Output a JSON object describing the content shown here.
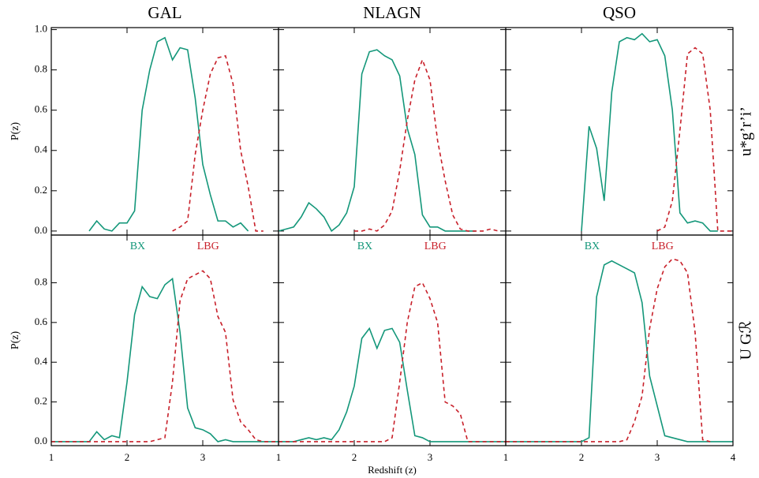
{
  "chart_data": [
    {
      "type": "line",
      "title": "GAL",
      "ylabel": "P(z)",
      "x": [
        1.0,
        1.1,
        1.2,
        1.3,
        1.4,
        1.5,
        1.6,
        1.7,
        1.8,
        1.9,
        2.0,
        2.1,
        2.2,
        2.3,
        2.4,
        2.5,
        2.6,
        2.7,
        2.8,
        2.9,
        3.0,
        3.1,
        3.2,
        3.3,
        3.4,
        3.5,
        3.6,
        3.7,
        3.8,
        3.9,
        4.0
      ],
      "xlim": [
        1,
        4
      ],
      "ylim": [
        -0.02,
        1.01
      ],
      "yticks": [
        {
          "value": 0,
          "label": "0.0"
        },
        0.2,
        0.4,
        0.6,
        0.8,
        {
          "value": 1,
          "label": "1.0"
        }
      ],
      "series": [
        {
          "color": "#14977a",
          "dash": false,
          "values": [
            null,
            null,
            null,
            null,
            null,
            0.0,
            0.05,
            0.01,
            0.0,
            0.04,
            0.04,
            0.1,
            0.6,
            0.8,
            0.94,
            0.96,
            0.85,
            0.91,
            0.9,
            0.66,
            0.33,
            0.18,
            0.05,
            0.05,
            0.02,
            0.04,
            0.0,
            null,
            null,
            null,
            null
          ]
        },
        {
          "color": "#c8202a",
          "dash": true,
          "values": [
            null,
            null,
            null,
            null,
            null,
            null,
            null,
            null,
            null,
            null,
            null,
            null,
            null,
            null,
            null,
            null,
            0.0,
            0.02,
            0.05,
            0.38,
            0.6,
            0.78,
            0.86,
            0.87,
            0.73,
            0.4,
            0.22,
            0.0,
            0.0,
            null,
            null
          ]
        }
      ]
    },
    {
      "type": "line",
      "title": "NLAGN",
      "x": [
        1.0,
        1.1,
        1.2,
        1.3,
        1.4,
        1.5,
        1.6,
        1.7,
        1.8,
        1.9,
        2.0,
        2.1,
        2.2,
        2.3,
        2.4,
        2.5,
        2.6,
        2.7,
        2.8,
        2.9,
        3.0,
        3.1,
        3.2,
        3.3,
        3.4,
        3.5,
        3.6,
        3.7,
        3.8,
        3.9,
        4.0
      ],
      "xlim": [
        1,
        4
      ],
      "ylim": [
        -0.02,
        1.01
      ],
      "series": [
        {
          "color": "#14977a",
          "dash": false,
          "values": [
            0.0,
            0.01,
            0.02,
            0.07,
            0.14,
            0.11,
            0.07,
            0.0,
            0.03,
            0.09,
            0.22,
            0.78,
            0.89,
            0.9,
            0.87,
            0.85,
            0.77,
            0.51,
            0.38,
            0.08,
            0.02,
            0.02,
            0.0,
            0.0,
            0.0,
            0.0,
            0.0,
            null,
            null,
            null,
            null
          ]
        },
        {
          "color": "#c8202a",
          "dash": true,
          "values": [
            null,
            null,
            null,
            null,
            null,
            null,
            null,
            null,
            null,
            null,
            0.0,
            0.0,
            0.01,
            0.0,
            0.03,
            0.1,
            0.3,
            0.55,
            0.75,
            0.85,
            0.75,
            0.45,
            0.25,
            0.08,
            0.01,
            0.0,
            0.0,
            0.0,
            0.01,
            0.0,
            null
          ]
        }
      ]
    },
    {
      "type": "line",
      "title": "QSO",
      "row_label": "u*g’r’i’",
      "x": [
        1.0,
        1.1,
        1.2,
        1.3,
        1.4,
        1.5,
        1.6,
        1.7,
        1.8,
        1.9,
        2.0,
        2.1,
        2.2,
        2.3,
        2.4,
        2.5,
        2.6,
        2.7,
        2.8,
        2.9,
        3.0,
        3.1,
        3.2,
        3.3,
        3.4,
        3.5,
        3.6,
        3.7,
        3.8,
        3.9,
        4.0
      ],
      "xlim": [
        1,
        4
      ],
      "ylim": [
        -0.02,
        1.01
      ],
      "series": [
        {
          "color": "#14977a",
          "dash": false,
          "values": [
            null,
            null,
            null,
            null,
            null,
            null,
            null,
            null,
            null,
            null,
            0.0,
            0.52,
            0.41,
            0.15,
            0.69,
            0.94,
            0.96,
            0.95,
            0.98,
            0.94,
            0.95,
            0.87,
            0.6,
            0.09,
            0.04,
            0.05,
            0.04,
            0.0,
            0.0,
            null,
            null
          ]
        },
        {
          "color": "#c8202a",
          "dash": true,
          "values": [
            null,
            null,
            null,
            null,
            null,
            null,
            null,
            null,
            null,
            null,
            null,
            null,
            null,
            null,
            null,
            null,
            null,
            null,
            null,
            null,
            0.0,
            0.02,
            0.15,
            0.5,
            0.88,
            0.91,
            0.88,
            0.6,
            0.0,
            0.0,
            0.0
          ]
        }
      ]
    },
    {
      "type": "line",
      "ylabel": "P(z)",
      "x": [
        1.0,
        1.1,
        1.2,
        1.3,
        1.4,
        1.5,
        1.6,
        1.7,
        1.8,
        1.9,
        2.0,
        2.1,
        2.2,
        2.3,
        2.4,
        2.5,
        2.6,
        2.7,
        2.8,
        2.9,
        3.0,
        3.1,
        3.2,
        3.3,
        3.4,
        3.5,
        3.6,
        3.7,
        3.8,
        3.9,
        4.0
      ],
      "xlim": [
        1,
        4
      ],
      "ylim": [
        -0.02,
        1.04
      ],
      "xticks": [
        1,
        2,
        3
      ],
      "yticks": [
        {
          "value": 0,
          "label": "0.0"
        },
        0.2,
        0.4,
        0.6,
        0.8
      ],
      "series": [
        {
          "name": "BX",
          "color": "#14977a",
          "dash": false,
          "values": [
            0.0,
            0.0,
            0.0,
            0.0,
            0.0,
            0.0,
            0.05,
            0.01,
            0.03,
            0.02,
            0.3,
            0.64,
            0.78,
            0.73,
            0.72,
            0.79,
            0.82,
            0.55,
            0.17,
            0.07,
            0.06,
            0.04,
            0.0,
            0.01,
            0.0,
            0.0,
            0.0,
            0.0,
            0.0,
            0.0,
            0.0
          ]
        },
        {
          "name": "LBG",
          "color": "#c8202a",
          "dash": true,
          "values": [
            0.0,
            0.0,
            0.0,
            0.0,
            0.0,
            0.0,
            0.0,
            0.0,
            0.0,
            0.0,
            0.0,
            0.0,
            0.0,
            0.0,
            0.01,
            0.02,
            0.3,
            0.71,
            0.82,
            0.84,
            0.86,
            0.82,
            0.63,
            0.55,
            0.21,
            0.1,
            0.06,
            0.01,
            0.0,
            0.0,
            0.0
          ]
        }
      ]
    },
    {
      "type": "line",
      "xlabel": "Redshift (z)",
      "x": [
        1.0,
        1.1,
        1.2,
        1.3,
        1.4,
        1.5,
        1.6,
        1.7,
        1.8,
        1.9,
        2.0,
        2.1,
        2.2,
        2.3,
        2.4,
        2.5,
        2.6,
        2.7,
        2.8,
        2.9,
        3.0,
        3.1,
        3.2,
        3.3,
        3.4,
        3.5,
        3.6,
        3.7,
        3.8,
        3.9,
        4.0
      ],
      "xlim": [
        1,
        4
      ],
      "ylim": [
        -0.02,
        1.04
      ],
      "xticks": [
        1,
        2,
        3
      ],
      "series": [
        {
          "name": "BX",
          "color": "#14977a",
          "dash": false,
          "values": [
            0.0,
            0.0,
            0.0,
            0.01,
            0.02,
            0.01,
            0.02,
            0.01,
            0.06,
            0.15,
            0.28,
            0.52,
            0.57,
            0.47,
            0.56,
            0.57,
            0.5,
            0.26,
            0.03,
            0.02,
            0.0,
            0.0,
            0.0,
            0.0,
            0.0,
            0.0,
            0.0,
            0.0,
            0.0,
            0.0,
            0.0
          ]
        },
        {
          "name": "LBG",
          "color": "#c8202a",
          "dash": true,
          "values": [
            0.0,
            0.0,
            0.0,
            0.0,
            0.0,
            0.0,
            0.0,
            0.0,
            0.0,
            0.0,
            0.0,
            0.0,
            0.0,
            0.0,
            0.0,
            0.02,
            0.3,
            0.6,
            0.78,
            0.8,
            0.72,
            0.6,
            0.2,
            0.18,
            0.14,
            0.0,
            0.0,
            0.0,
            0.0,
            0.0,
            0.0
          ]
        }
      ]
    },
    {
      "type": "line",
      "row_label": "U Gℛ",
      "x": [
        1.0,
        1.1,
        1.2,
        1.3,
        1.4,
        1.5,
        1.6,
        1.7,
        1.8,
        1.9,
        2.0,
        2.1,
        2.2,
        2.3,
        2.4,
        2.5,
        2.6,
        2.7,
        2.8,
        2.9,
        3.0,
        3.1,
        3.2,
        3.3,
        3.4,
        3.5,
        3.6,
        3.7,
        3.8,
        3.9,
        4.0
      ],
      "xlim": [
        1,
        4
      ],
      "ylim": [
        -0.02,
        1.04
      ],
      "xticks": [
        1,
        2,
        3,
        4
      ],
      "series": [
        {
          "name": "BX",
          "color": "#14977a",
          "dash": false,
          "values": [
            0.0,
            0.0,
            0.0,
            0.0,
            0.0,
            0.0,
            0.0,
            0.0,
            0.0,
            0.0,
            0.0,
            0.02,
            0.73,
            0.89,
            0.91,
            0.89,
            0.87,
            0.85,
            0.7,
            0.33,
            0.18,
            0.03,
            0.02,
            0.01,
            0.0,
            0.0,
            0.0,
            0.0,
            0.0,
            0.0,
            0.0
          ]
        },
        {
          "name": "LBG",
          "color": "#c8202a",
          "dash": true,
          "values": [
            0.0,
            0.0,
            0.0,
            0.0,
            0.0,
            0.0,
            0.0,
            0.0,
            0.0,
            0.0,
            0.0,
            0.0,
            0.0,
            0.0,
            0.0,
            0.0,
            0.01,
            0.1,
            0.23,
            0.57,
            0.77,
            0.88,
            0.92,
            0.91,
            0.85,
            0.55,
            0.01,
            0.0,
            null,
            null,
            null
          ]
        }
      ]
    }
  ]
}
